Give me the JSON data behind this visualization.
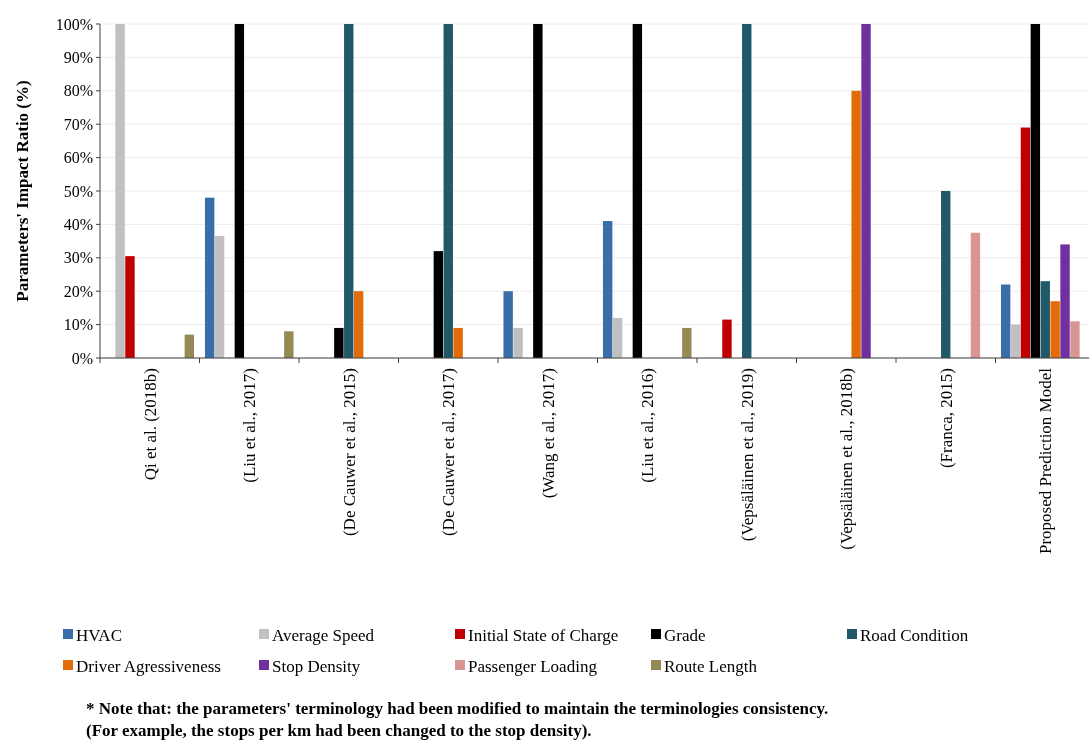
{
  "chart_data": {
    "type": "bar",
    "ylabel": "Parameters' Impact Ratio (%)",
    "categories": [
      "Qi et al. (2018b)",
      "(Liu et al., 2017)",
      "(De Cauwer et al., 2015)",
      "(De Cauwer et al., 2017)",
      "(Wang et al., 2017)",
      "(Liu et al., 2016)",
      "(Vepsäläinen et al., 2019)",
      "(Vepsäläinen et al., 2018b)",
      "(Franca, 2015)",
      "Proposed Prediction Model"
    ],
    "series": [
      {
        "name": "HVAC",
        "color": "#3a6ea8",
        "values": [
          null,
          48,
          null,
          null,
          20,
          41,
          null,
          null,
          null,
          22
        ]
      },
      {
        "name": "Average Speed",
        "color": "#c0c0c0",
        "values": [
          100,
          36.5,
          null,
          null,
          9,
          12,
          null,
          null,
          null,
          10
        ]
      },
      {
        "name": "Initial State of Charge",
        "color": "#c00000",
        "values": [
          30.5,
          null,
          null,
          null,
          null,
          null,
          11.5,
          null,
          null,
          69
        ]
      },
      {
        "name": "Grade",
        "color": "#000000",
        "values": [
          null,
          100,
          9,
          32,
          100,
          100,
          null,
          null,
          null,
          100
        ]
      },
      {
        "name": "Road Condition",
        "color": "#215968",
        "values": [
          null,
          null,
          100,
          100,
          null,
          null,
          100,
          null,
          50,
          23
        ]
      },
      {
        "name": "Driver Agressiveness",
        "color": "#e36c0a",
        "values": [
          null,
          null,
          20,
          9,
          null,
          null,
          null,
          80,
          null,
          17
        ]
      },
      {
        "name": "Stop Density",
        "color": "#7030a0",
        "values": [
          null,
          null,
          null,
          null,
          null,
          null,
          null,
          100,
          null,
          34
        ]
      },
      {
        "name": "Passenger Loading",
        "color": "#d99594",
        "values": [
          null,
          null,
          null,
          null,
          null,
          null,
          null,
          null,
          37.5,
          11
        ]
      },
      {
        "name": "Route Length",
        "color": "#948a54",
        "values": [
          7,
          8,
          null,
          null,
          null,
          9,
          null,
          null,
          null,
          null
        ]
      }
    ],
    "ylim": [
      0,
      100
    ],
    "yticks": [
      {
        "value": 0,
        "label": "0%"
      },
      {
        "value": 10,
        "label": "10%"
      },
      {
        "value": 20,
        "label": "20%"
      },
      {
        "value": 30,
        "label": "30%"
      },
      {
        "value": 40,
        "label": "40%"
      },
      {
        "value": 50,
        "label": "50%"
      },
      {
        "value": 60,
        "label": "60%"
      },
      {
        "value": 70,
        "label": "70%"
      },
      {
        "value": 80,
        "label": "80%"
      },
      {
        "value": 90,
        "label": "90%"
      },
      {
        "value": 100,
        "label": "100%"
      }
    ],
    "grid": "y",
    "legend": "bottom",
    "annotations": [
      "* Note that: the parameters' terminology had been modified to maintain the terminologies consistency.",
      "(For example, the stops per km had been changed to the stop density)."
    ]
  }
}
